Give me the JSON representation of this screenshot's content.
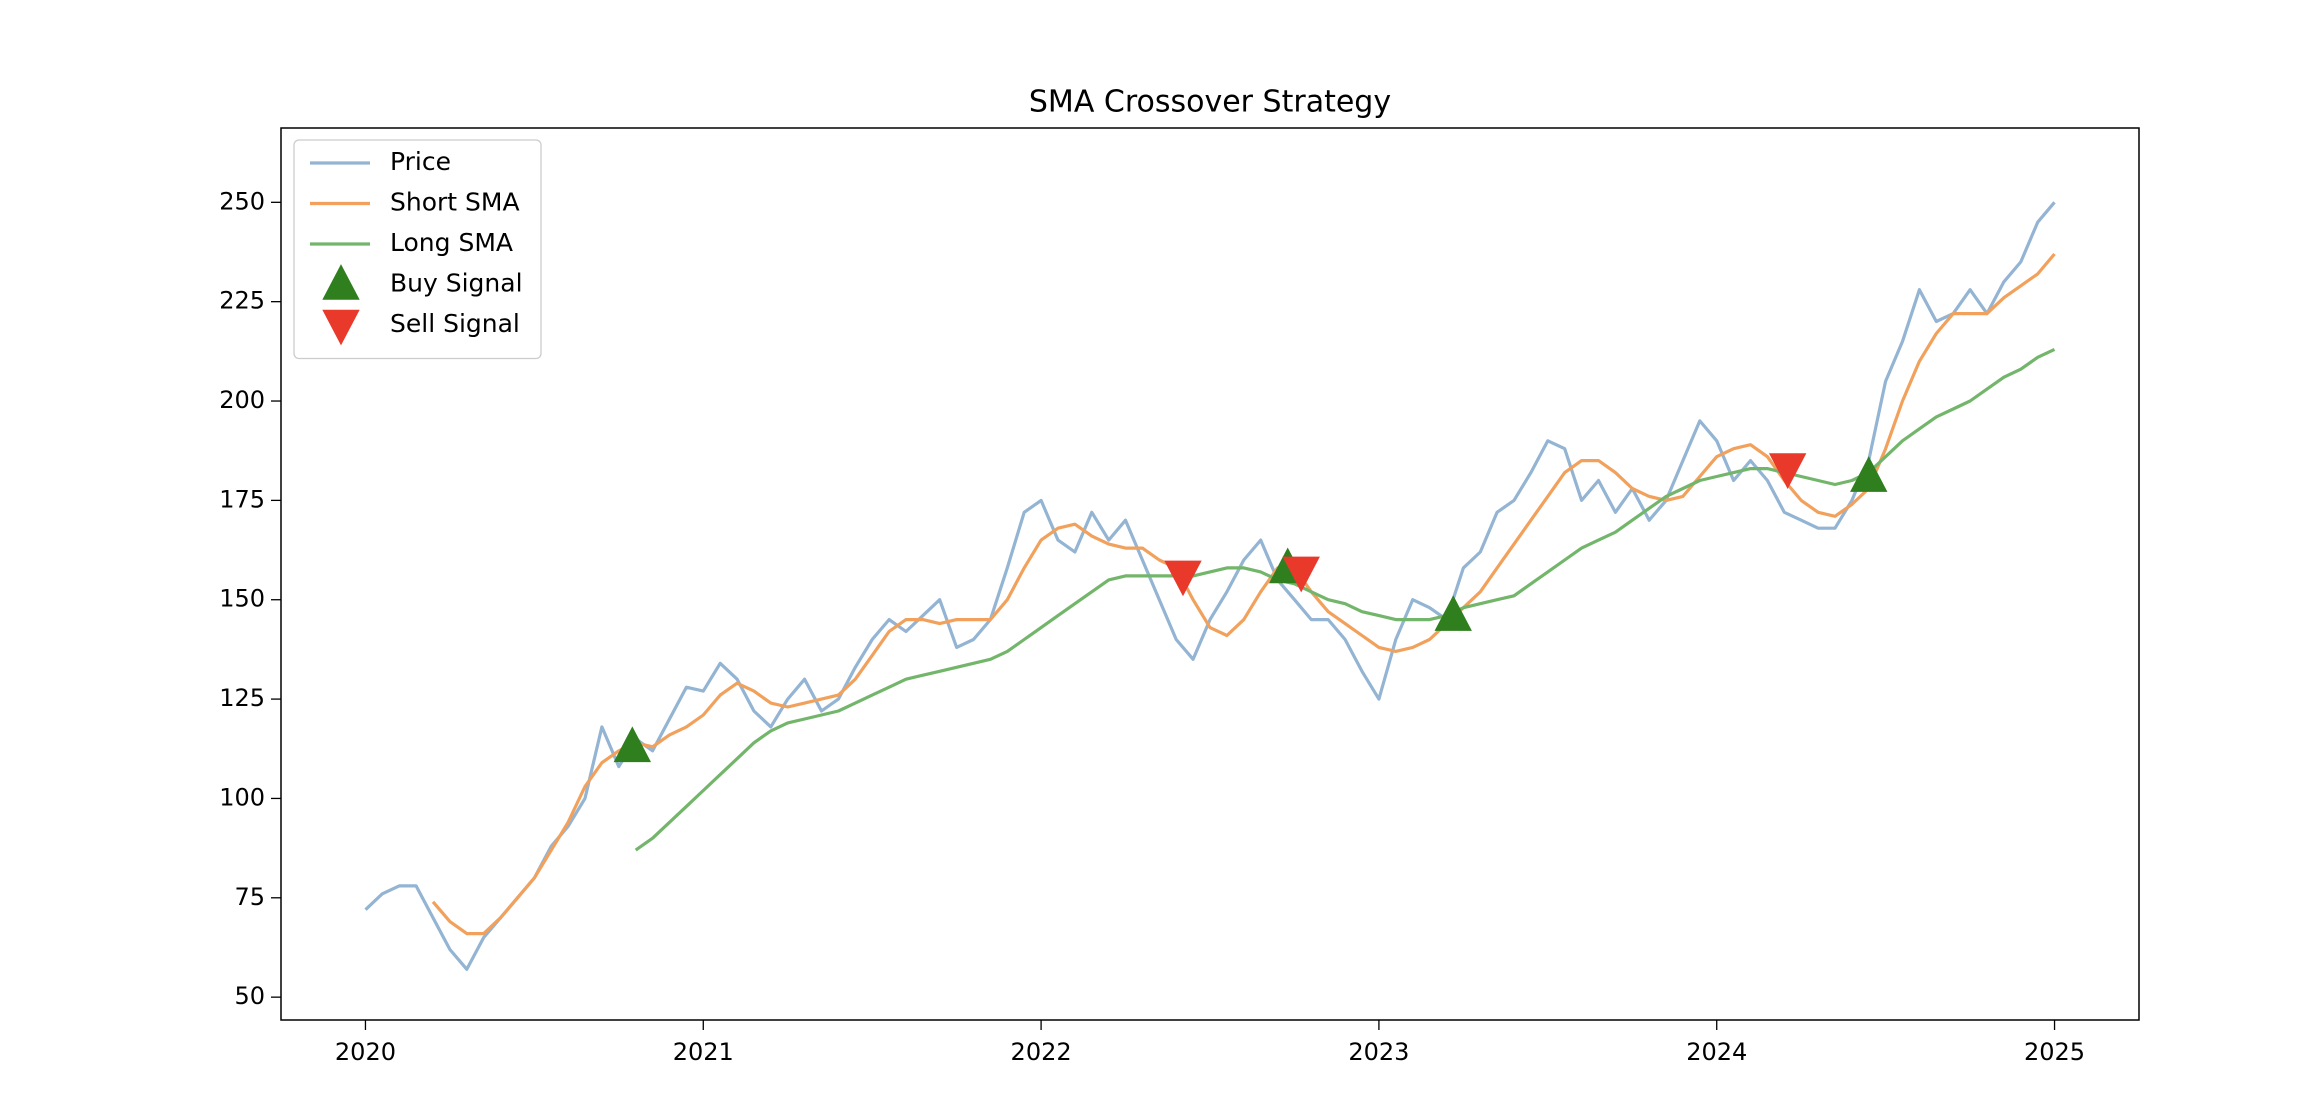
{
  "chart_data": {
    "type": "line",
    "title": "SMA Crossover Strategy",
    "x": [
      2020.0,
      2020.05,
      2020.1,
      2020.15,
      2020.2,
      2020.25,
      2020.3,
      2020.35,
      2020.4,
      2020.45,
      2020.5,
      2020.55,
      2020.6,
      2020.65,
      2020.7,
      2020.75,
      2020.8,
      2020.85,
      2020.9,
      2020.95,
      2021.0,
      2021.05,
      2021.1,
      2021.15,
      2021.2,
      2021.25,
      2021.3,
      2021.35,
      2021.4,
      2021.45,
      2021.5,
      2021.55,
      2021.6,
      2021.65,
      2021.7,
      2021.75,
      2021.8,
      2021.85,
      2021.9,
      2021.95,
      2022.0,
      2022.05,
      2022.1,
      2022.15,
      2022.2,
      2022.25,
      2022.3,
      2022.35,
      2022.4,
      2022.45,
      2022.5,
      2022.55,
      2022.6,
      2022.65,
      2022.7,
      2022.75,
      2022.8,
      2022.85,
      2022.9,
      2022.95,
      2023.0,
      2023.05,
      2023.1,
      2023.15,
      2023.2,
      2023.25,
      2023.3,
      2023.35,
      2023.4,
      2023.45,
      2023.5,
      2023.55,
      2023.6,
      2023.65,
      2023.7,
      2023.75,
      2023.8,
      2023.85,
      2023.9,
      2023.95,
      2024.0,
      2024.05,
      2024.1,
      2024.15,
      2024.2,
      2024.25,
      2024.3,
      2024.35,
      2024.4,
      2024.45,
      2024.5,
      2024.55,
      2024.6,
      2024.65,
      2024.7,
      2024.75,
      2024.8,
      2024.85,
      2024.9,
      2024.95,
      2025.0
    ],
    "series": [
      {
        "name": "Price",
        "color": "#93b4d3",
        "values": [
          72,
          76,
          78,
          78,
          70,
          62,
          57,
          65,
          70,
          75,
          80,
          88,
          93,
          100,
          118,
          108,
          115,
          112,
          120,
          128,
          127,
          134,
          130,
          122,
          118,
          125,
          130,
          122,
          125,
          133,
          140,
          145,
          142,
          146,
          150,
          138,
          140,
          145,
          158,
          172,
          175,
          165,
          162,
          172,
          165,
          170,
          160,
          150,
          140,
          135,
          145,
          152,
          160,
          165,
          155,
          150,
          145,
          145,
          140,
          132,
          125,
          140,
          150,
          148,
          145,
          158,
          162,
          172,
          175,
          182,
          190,
          188,
          175,
          180,
          172,
          178,
          170,
          175,
          185,
          195,
          190,
          180,
          185,
          180,
          172,
          170,
          168,
          168,
          175,
          185,
          205,
          215,
          228,
          220,
          222,
          228,
          222,
          230,
          235,
          245,
          250
        ]
      },
      {
        "name": "Short SMA",
        "color": "#f2a15c",
        "values": [
          null,
          null,
          null,
          null,
          74,
          69,
          66,
          66,
          70,
          75,
          80,
          87,
          94,
          103,
          109,
          112,
          114,
          113,
          116,
          118,
          121,
          126,
          129,
          127,
          124,
          123,
          124,
          125,
          126,
          130,
          136,
          142,
          145,
          145,
          144,
          145,
          145,
          145,
          150,
          158,
          165,
          168,
          169,
          166,
          164,
          163,
          163,
          160,
          158,
          150,
          143,
          141,
          145,
          152,
          158,
          158,
          152,
          147,
          144,
          141,
          138,
          137,
          138,
          140,
          144,
          148,
          152,
          158,
          164,
          170,
          176,
          182,
          185,
          185,
          182,
          178,
          176,
          175,
          176,
          181,
          186,
          188,
          189,
          186,
          180,
          175,
          172,
          171,
          174,
          178,
          188,
          200,
          210,
          217,
          222,
          222,
          222,
          226,
          229,
          232,
          237
        ]
      },
      {
        "name": "Long SMA",
        "color": "#73b66b",
        "values": [
          null,
          null,
          null,
          null,
          null,
          null,
          null,
          null,
          null,
          null,
          null,
          null,
          null,
          null,
          null,
          null,
          87,
          90,
          94,
          98,
          102,
          106,
          110,
          114,
          117,
          119,
          120,
          121,
          122,
          124,
          126,
          128,
          130,
          131,
          132,
          133,
          134,
          135,
          137,
          140,
          143,
          146,
          149,
          152,
          155,
          156,
          156,
          156,
          156,
          156,
          157,
          158,
          158,
          157,
          155,
          154,
          152,
          150,
          149,
          147,
          146,
          145,
          145,
          145,
          146,
          148,
          149,
          150,
          151,
          154,
          157,
          160,
          163,
          165,
          167,
          170,
          173,
          176,
          178,
          180,
          181,
          182,
          183,
          183,
          182,
          181,
          180,
          179,
          180,
          182,
          186,
          190,
          193,
          196,
          198,
          200,
          203,
          206,
          208,
          211,
          213
        ]
      },
      {
        "name": "Buy Signal",
        "color": "#2f7f1f",
        "marker": "^",
        "x": [
          2020.79,
          2022.73,
          2023.22,
          2024.45
        ],
        "values": [
          113,
          158,
          146,
          181
        ]
      },
      {
        "name": "Sell Signal",
        "color": "#e8392b",
        "marker": "v",
        "x": [
          2022.42,
          2022.77,
          2024.21
        ],
        "values": [
          156,
          157,
          183
        ]
      }
    ],
    "xlim": [
      2019.75,
      2025.25
    ],
    "xticks": [
      2020,
      2021,
      2022,
      2023,
      2024,
      2025
    ],
    "ylim": [
      44.25,
      268.7
    ],
    "yticks": [
      50,
      75,
      100,
      125,
      150,
      175,
      200,
      225,
      250
    ],
    "grid": false,
    "legend": "upper left"
  }
}
